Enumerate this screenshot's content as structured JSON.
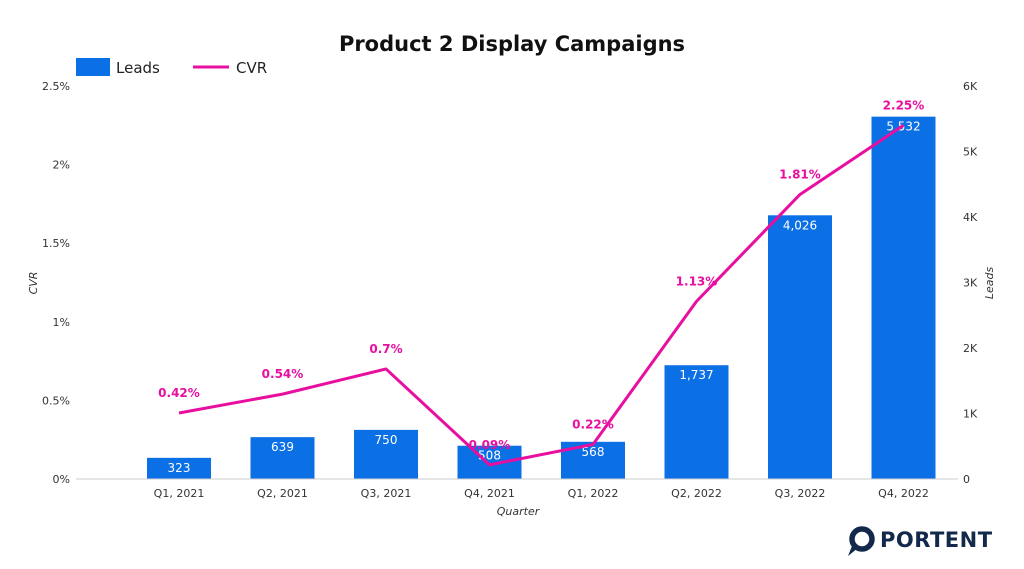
{
  "chart_data": {
    "type": "bar",
    "title": "Product 2 Display Campaigns",
    "xlabel": "Quarter",
    "ylabel_left": "CVR",
    "ylabel_right": "Leads",
    "categories": [
      "Q1, 2021",
      "Q2, 2021",
      "Q3, 2021",
      "Q4, 2021",
      "Q1, 2022",
      "Q2, 2022",
      "Q3, 2022",
      "Q4, 2022"
    ],
    "series": [
      {
        "name": "Leads",
        "type": "bar",
        "axis": "right",
        "color": "#0b6fe6",
        "values": [
          323,
          639,
          750,
          508,
          568,
          1737,
          4026,
          5532
        ],
        "labels": [
          "323",
          "639",
          "750",
          "508",
          "568",
          "1,737",
          "4,026",
          "5,532"
        ]
      },
      {
        "name": "CVR",
        "type": "line",
        "axis": "left",
        "color": "#e80fa0",
        "values": [
          0.42,
          0.54,
          0.7,
          0.09,
          0.22,
          1.13,
          1.81,
          2.25
        ],
        "labels": [
          "0.42%",
          "0.54%",
          "0.7%",
          "0.09%",
          "0.22%",
          "1.13%",
          "1.81%",
          "2.25%"
        ]
      }
    ],
    "left_axis": {
      "min": 0,
      "max": 2.5,
      "ticks": [
        "0%",
        "0.5%",
        "1%",
        "1.5%",
        "2%",
        "2.5%"
      ]
    },
    "right_axis": {
      "min": 0,
      "max": 6000,
      "ticks": [
        "0",
        "1K",
        "2K",
        "3K",
        "4K",
        "5K",
        "6K"
      ]
    },
    "legend_position": "top-left",
    "grid": false
  },
  "branding": {
    "logo_text": "PORTENT",
    "logo_icon": "portent-ring-icon",
    "logo_color": "#13294b"
  }
}
